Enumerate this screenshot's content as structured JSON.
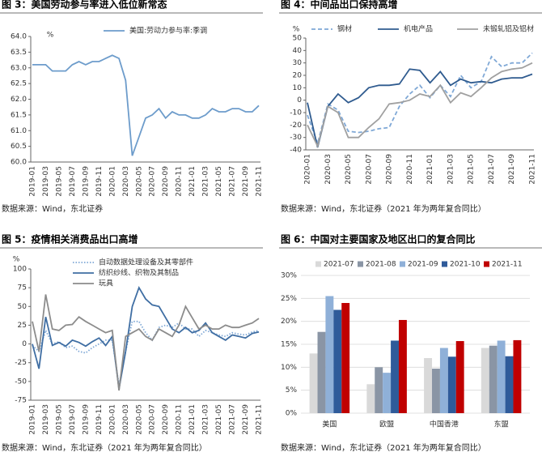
{
  "chart_data": [
    {
      "type": "line",
      "title": "图 3：美国劳动参与率进入低位新常态",
      "source": "数据来源：Wind，东北证券",
      "y_unit": "%",
      "categories": [
        "2019-01",
        null,
        "2019-03",
        null,
        "2019-05",
        null,
        "2019-07",
        null,
        "2019-09",
        null,
        "2019-11",
        null,
        "2020-01",
        null,
        "2020-03",
        null,
        "2020-05",
        null,
        "2020-07",
        null,
        "2020-09",
        null,
        "2020-11",
        null,
        "2021-01",
        null,
        "2021-03",
        null,
        "2021-05",
        null,
        "2021-07",
        null,
        "2021-09",
        null,
        "2021-11"
      ],
      "series": [
        {
          "name": "美国:劳动力参与率:季调",
          "color": "#6d9ccb",
          "style": "solid",
          "values": [
            63.1,
            63.1,
            63.1,
            62.9,
            62.9,
            62.9,
            63.1,
            63.2,
            63.1,
            63.2,
            63.2,
            63.3,
            63.4,
            63.3,
            62.6,
            60.2,
            60.8,
            61.4,
            61.5,
            61.7,
            61.4,
            61.6,
            61.5,
            61.5,
            61.4,
            61.4,
            61.5,
            61.7,
            61.6,
            61.6,
            61.7,
            61.7,
            61.6,
            61.6,
            61.8
          ]
        }
      ],
      "ylim": [
        60,
        64
      ],
      "yticks": [
        {
          "value": 60,
          "label": "60.0"
        },
        {
          "value": 60.5,
          "label": "60.5"
        },
        {
          "value": 61,
          "label": "61.0"
        },
        {
          "value": 61.5,
          "label": "61.5"
        },
        {
          "value": 62,
          "label": "62.0"
        },
        {
          "value": 62.5,
          "label": "62.5"
        },
        {
          "value": 63,
          "label": "63.0"
        },
        {
          "value": 63.5,
          "label": "63.5"
        },
        {
          "value": 64,
          "label": "64.0"
        }
      ],
      "grid": false
    },
    {
      "type": "line",
      "title": "图 4：中间品出口保持高增",
      "source": "数据来源：Wind，东北证券（2021 年为两年复合同比）",
      "y_unit": "%",
      "categories": [
        "2020-01",
        null,
        "2020-03",
        null,
        "2020-05",
        null,
        "2020-07",
        null,
        "2020-09",
        null,
        "2020-11",
        null,
        "2021-01",
        null,
        "2021-03",
        null,
        "2021-05",
        null,
        "2021-07",
        null,
        "2021-09",
        null,
        "2021-11"
      ],
      "series": [
        {
          "name": "钢材",
          "color": "#7fa8d6",
          "style": "dashed",
          "values": [
            -12,
            -35,
            -3,
            -8,
            -25,
            -26,
            -25,
            -23,
            -22,
            -5,
            5,
            12,
            2,
            12,
            3,
            20,
            10,
            15,
            35,
            27,
            30,
            30,
            38
          ]
        },
        {
          "name": "机电产品",
          "color": "#2f5b8f",
          "style": "solid",
          "values": [
            -2,
            -38,
            -5,
            5,
            -2,
            2,
            10,
            12,
            12,
            13,
            25,
            24,
            14,
            23,
            12,
            17,
            14,
            15,
            14,
            17,
            18,
            18,
            21
          ]
        },
        {
          "name": "未锻轧铝及铝材",
          "color": "#a0a0a0",
          "style": "solid",
          "values": [
            -20,
            -37,
            -5,
            -10,
            -30,
            -30,
            -22,
            -15,
            -3,
            -2,
            0,
            5,
            3,
            12,
            -2,
            6,
            3,
            10,
            18,
            23,
            25,
            26,
            30
          ]
        }
      ],
      "ylim": [
        -40,
        50
      ],
      "yticks": [
        -40,
        -30,
        -20,
        -10,
        0,
        10,
        20,
        30,
        40,
        50
      ],
      "grid": false
    },
    {
      "type": "line",
      "title": "图 5：疫情相关消费品出口高增",
      "source": "数据来源：Wind，东北证券（2021 年为两年复合同比）",
      "y_unit": "%",
      "categories": [
        "2019-01",
        null,
        "2019-03",
        null,
        "2019-05",
        null,
        "2019-07",
        null,
        "2019-09",
        null,
        "2019-11",
        null,
        "2020-01",
        null,
        "2020-03",
        null,
        "2020-05",
        null,
        "2020-07",
        null,
        "2020-09",
        null,
        "2020-11",
        null,
        "2021-01",
        null,
        "2021-03",
        null,
        "2021-05",
        null,
        "2021-07",
        null,
        "2021-09",
        null,
        "2021-11"
      ],
      "series": [
        {
          "name": "自动数据处理设备及其零部件",
          "color": "#7fa8d6",
          "style": "dotted",
          "values": [
            -2,
            -10,
            18,
            0,
            3,
            -5,
            -3,
            -10,
            -12,
            -5,
            0,
            5,
            5,
            -55,
            -10,
            30,
            30,
            15,
            5,
            22,
            25,
            22,
            28,
            20,
            20,
            10,
            18,
            15,
            12,
            10,
            15,
            13,
            12,
            16,
            18
          ]
        },
        {
          "name": "纺织纱线、织物及其制品",
          "color": "#3f6ea3",
          "style": "solid",
          "values": [
            0,
            -33,
            36,
            -2,
            2,
            -3,
            5,
            2,
            -3,
            3,
            8,
            -2,
            10,
            -60,
            -10,
            50,
            75,
            60,
            52,
            50,
            35,
            20,
            15,
            22,
            15,
            18,
            28,
            15,
            10,
            5,
            12,
            10,
            8,
            14,
            16
          ]
        },
        {
          "name": "玩具",
          "color": "#8c8c8c",
          "style": "solid",
          "values": [
            30,
            -10,
            66,
            20,
            18,
            25,
            26,
            36,
            30,
            25,
            20,
            15,
            18,
            -62,
            10,
            15,
            20,
            10,
            5,
            20,
            15,
            10,
            25,
            50,
            35,
            20,
            25,
            20,
            20,
            25,
            22,
            22,
            25,
            28,
            34
          ]
        }
      ],
      "ylim": [
        -75,
        100
      ],
      "yticks": [
        -75,
        -50,
        -25,
        0,
        25,
        50,
        75,
        100
      ],
      "grid": false
    },
    {
      "type": "bar",
      "title": "图 6：中国对主要国家及地区出口的复合同比",
      "source": "数据来源：Wind，东北证券（2021 年为两年复合同比）",
      "categories": [
        "美国",
        "欧盟",
        "中国香港",
        "东盟"
      ],
      "series": [
        {
          "name": "2021-07",
          "color": "#d9d9d9",
          "values": [
            13,
            6.3,
            12,
            14.2
          ]
        },
        {
          "name": "2021-08",
          "color": "#8a95a5",
          "values": [
            17.7,
            10,
            9.7,
            14.7
          ]
        },
        {
          "name": "2021-09",
          "color": "#8fb0d8",
          "values": [
            25.5,
            8.8,
            14.2,
            15.8
          ]
        },
        {
          "name": "2021-10",
          "color": "#2f5b9a",
          "values": [
            22.5,
            15.8,
            12.3,
            12.4
          ]
        },
        {
          "name": "2021-11",
          "color": "#c00000",
          "values": [
            24,
            20.3,
            15.7,
            15.9
          ]
        }
      ],
      "ylim": [
        0,
        30
      ],
      "yticks": [
        {
          "value": 0,
          "label": "0%"
        },
        {
          "value": 5,
          "label": "5%"
        },
        {
          "value": 10,
          "label": "10%"
        },
        {
          "value": 15,
          "label": "15%"
        },
        {
          "value": 20,
          "label": "20%"
        },
        {
          "value": 25,
          "label": "25%"
        },
        {
          "value": 30,
          "label": "30%"
        }
      ],
      "grid": true
    }
  ]
}
